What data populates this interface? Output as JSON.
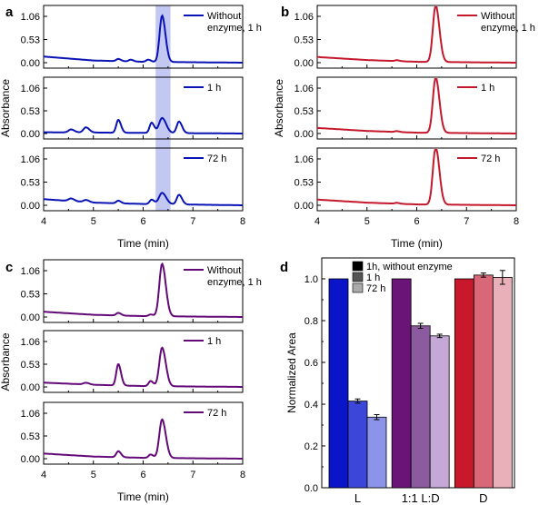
{
  "chart_data": [
    {
      "panel": "a",
      "type": "line",
      "xlabel": "Time (min)",
      "ylabel": "Absorbance",
      "xlim": [
        4,
        8
      ],
      "x_ticks": [
        "4",
        "5",
        "6",
        "7",
        "8"
      ],
      "y_ticks": [
        "0.00",
        "0.53",
        "1.06"
      ],
      "highlight_x": [
        6.25,
        6.55
      ],
      "color": "#0a14b4",
      "traces": [
        {
          "legend": "Without\nenzyme, 1 h",
          "baseline": [
            [
              4,
              0.14
            ],
            [
              5,
              0.05
            ],
            [
              6,
              0.02
            ],
            [
              8,
              0.0
            ]
          ],
          "peaks": [
            [
              5.5,
              0.05,
              0.04
            ],
            [
              5.75,
              0.04,
              0.04
            ],
            [
              6.1,
              0.05,
              0.04
            ],
            [
              6.38,
              1.06,
              0.05
            ]
          ]
        },
        {
          "legend": "1 h",
          "baseline": [
            [
              4,
              0.03
            ],
            [
              8,
              0.0
            ]
          ],
          "peaks": [
            [
              4.55,
              0.07,
              0.05
            ],
            [
              4.85,
              0.12,
              0.05
            ],
            [
              5.5,
              0.3,
              0.04
            ],
            [
              6.17,
              0.24,
              0.04
            ],
            [
              6.38,
              0.35,
              0.06
            ],
            [
              6.72,
              0.27,
              0.045
            ]
          ]
        },
        {
          "legend": "72 h",
          "baseline": [
            [
              4,
              0.14
            ],
            [
              5,
              0.06
            ],
            [
              6,
              0.03
            ],
            [
              8,
              0.0
            ]
          ],
          "peaks": [
            [
              4.55,
              0.06,
              0.05
            ],
            [
              4.85,
              0.05,
              0.05
            ],
            [
              5.5,
              0.06,
              0.04
            ],
            [
              6.17,
              0.1,
              0.04
            ],
            [
              6.38,
              0.26,
              0.06
            ],
            [
              6.72,
              0.22,
              0.045
            ]
          ]
        }
      ]
    },
    {
      "panel": "b",
      "type": "line",
      "xlabel": "Time (min)",
      "ylabel": "Absorbance",
      "xlim": [
        4,
        8
      ],
      "x_ticks": [
        "4",
        "5",
        "6",
        "7",
        "8"
      ],
      "y_ticks": [
        "0.00",
        "0.53",
        "1.06"
      ],
      "color": "#c4182c",
      "traces": [
        {
          "legend": "Without\nenzyme, 1 h",
          "baseline": [
            [
              4,
              0.13
            ],
            [
              5,
              0.06
            ],
            [
              6,
              0.02
            ],
            [
              8,
              0.0
            ]
          ],
          "peaks": [
            [
              5.6,
              0.02,
              0.04
            ],
            [
              6.38,
              1.3,
              0.055
            ]
          ]
        },
        {
          "legend": "1 h",
          "baseline": [
            [
              4,
              0.13
            ],
            [
              5,
              0.06
            ],
            [
              6,
              0.02
            ],
            [
              8,
              0.0
            ]
          ],
          "peaks": [
            [
              5.6,
              0.02,
              0.04
            ],
            [
              6.38,
              1.3,
              0.055
            ]
          ]
        },
        {
          "legend": "72 h",
          "baseline": [
            [
              4,
              0.13
            ],
            [
              5,
              0.06
            ],
            [
              6,
              0.02
            ],
            [
              8,
              0.0
            ]
          ],
          "peaks": [
            [
              5.6,
              0.02,
              0.04
            ],
            [
              6.38,
              1.32,
              0.055
            ]
          ]
        }
      ]
    },
    {
      "panel": "c",
      "type": "line",
      "xlabel": "Time (min)",
      "ylabel": "Absorbance",
      "xlim": [
        4,
        8
      ],
      "x_ticks": [
        "4",
        "5",
        "6",
        "7",
        "8"
      ],
      "y_ticks": [
        "0.00",
        "0.53",
        "1.06"
      ],
      "color": "#640a78",
      "traces": [
        {
          "legend": "Without\nenzyme, 1 h",
          "baseline": [
            [
              4,
              0.12
            ],
            [
              5,
              0.05
            ],
            [
              6,
              0.02
            ],
            [
              8,
              0.0
            ]
          ],
          "peaks": [
            [
              5.5,
              0.06,
              0.04
            ],
            [
              6.15,
              0.04,
              0.04
            ],
            [
              6.38,
              1.2,
              0.055
            ]
          ]
        },
        {
          "legend": "1 h",
          "baseline": [
            [
              4,
              0.1
            ],
            [
              5,
              0.05
            ],
            [
              6,
              0.02
            ],
            [
              8,
              0.0
            ]
          ],
          "peaks": [
            [
              4.85,
              0.04,
              0.05
            ],
            [
              5.5,
              0.5,
              0.04
            ],
            [
              6.15,
              0.12,
              0.04
            ],
            [
              6.38,
              0.9,
              0.055
            ]
          ]
        },
        {
          "legend": "72 h",
          "baseline": [
            [
              4,
              0.12
            ],
            [
              5,
              0.05
            ],
            [
              6,
              0.02
            ],
            [
              8,
              0.0
            ]
          ],
          "peaks": [
            [
              5.5,
              0.14,
              0.04
            ],
            [
              6.15,
              0.08,
              0.04
            ],
            [
              6.38,
              0.9,
              0.055
            ]
          ]
        }
      ]
    },
    {
      "panel": "d",
      "type": "bar",
      "ylabel": "Normalized Area",
      "ylim": [
        0,
        1.1
      ],
      "y_ticks": [
        "0.0",
        "0.2",
        "0.4",
        "0.6",
        "0.8",
        "1.0"
      ],
      "categories": [
        "L",
        "1:1 L:D",
        "D"
      ],
      "legend": [
        "1h, without enzyme",
        "1 h",
        "72 h"
      ],
      "series": [
        {
          "name": "1h, without enzyme",
          "values": [
            1.0,
            1.0,
            1.0
          ],
          "errors": [
            0,
            0,
            0
          ]
        },
        {
          "name": "1 h",
          "values": [
            0.415,
            0.775,
            1.018
          ],
          "errors": [
            0.01,
            0.012,
            0.01
          ]
        },
        {
          "name": "72 h",
          "values": [
            0.338,
            0.727,
            1.007
          ],
          "errors": [
            0.012,
            0.008,
            0.033
          ]
        }
      ],
      "colors": [
        [
          "#0a14c8",
          "#3c46d8",
          "#8c94ea"
        ],
        [
          "#6a1478",
          "#8c5a9e",
          "#c4a8d6"
        ],
        [
          "#c8182c",
          "#d86878",
          "#eab0ba"
        ]
      ],
      "legend_colors": [
        "#000000",
        "#555555",
        "#aaaaaa"
      ]
    }
  ]
}
